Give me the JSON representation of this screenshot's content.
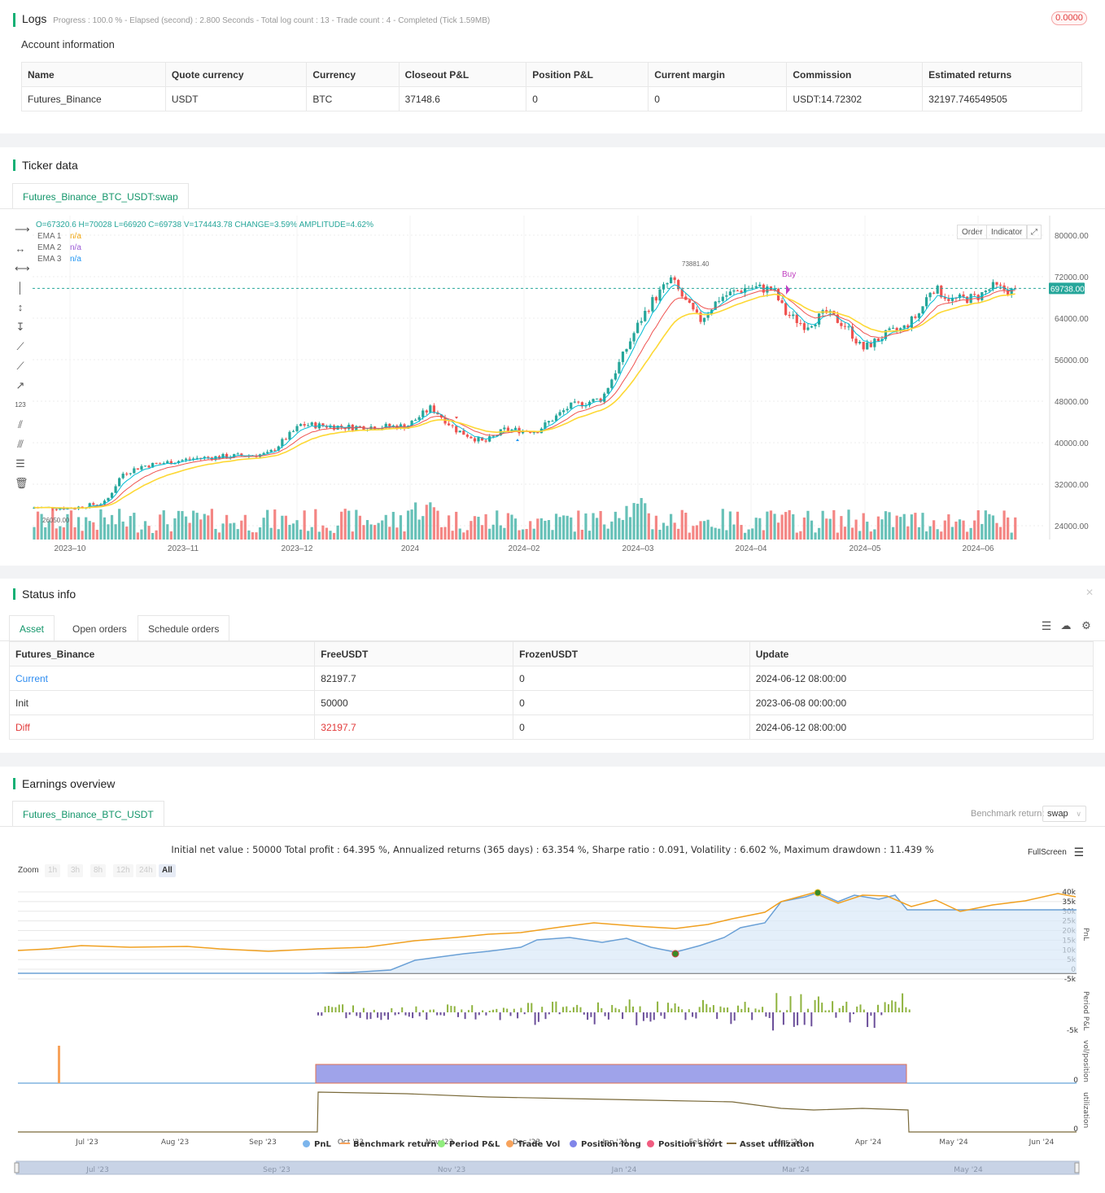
{
  "logs": {
    "title": "Logs",
    "progress_text": "Progress : 100.0 % - Elapsed (second) : 2.800  Seconds - Total log count : 13 - Trade count : 4 - Completed (Tick 1.59MB)",
    "badge": "0.0000"
  },
  "account": {
    "title": "Account information",
    "columns": [
      "Name",
      "Quote currency",
      "Currency",
      "Closeout P&L",
      "Position P&L",
      "Current margin",
      "Commission",
      "Estimated returns"
    ],
    "row": [
      "Futures_Binance",
      "USDT",
      "BTC",
      "37148.6",
      "0",
      "0",
      "USDT:14.72302",
      "32197.746549505"
    ]
  },
  "ticker": {
    "title": "Ticker data",
    "tab": "Futures_Binance_BTC_USDT:swap",
    "ohlc_line": "O=67320.6 H=70028 L=66920 C=69738 V=174443.78 CHANGE=3.59% AMPLITUDE=4.62%",
    "ema": [
      {
        "label": "EMA 1",
        "value": "n/a",
        "color": "#f0a30a"
      },
      {
        "label": "EMA 2",
        "value": "n/a",
        "color": "#9c5bd6"
      },
      {
        "label": "EMA 3",
        "value": "n/a",
        "color": "#2196f3"
      }
    ],
    "order_btn": "Order",
    "indicator_btn": "Indicator",
    "price_labels": [
      "80000.00",
      "72000.00",
      "64000.00",
      "56000.00",
      "48000.00",
      "40000.00",
      "32000.00",
      "24000.00"
    ],
    "current_price": "69738.00",
    "date_labels": [
      "2023–10",
      "2023–11",
      "2023–12",
      "2024",
      "2024–02",
      "2024–03",
      "2024–04",
      "2024–05",
      "2024–06"
    ],
    "high_label": "73881.40",
    "low_label": "26050.00",
    "buy_label": "Buy",
    "colors": {
      "up": "#26a69a",
      "down": "#ef5350",
      "ema_fast": "#00bcd4",
      "ema_mid": "#ef5350",
      "ema_slow": "#fdd835"
    }
  },
  "status": {
    "title": "Status info",
    "tabs": [
      "Asset",
      "Open orders",
      "Schedule orders"
    ],
    "columns": [
      "Futures_Binance",
      "FreeUSDT",
      "FrozenUSDT",
      "Update"
    ],
    "rows": [
      [
        "Current",
        "82197.7",
        "0",
        "2024-06-12 08:00:00"
      ],
      [
        "Init",
        "50000",
        "0",
        "2023-06-08 00:00:00"
      ],
      [
        "Diff",
        "32197.7",
        "0",
        "2024-06-12 08:00:00"
      ]
    ]
  },
  "earnings": {
    "title": "Earnings overview",
    "tab": "Futures_Binance_BTC_USDT",
    "benchmark_label": "Benchmark return:",
    "benchmark_value": "swap",
    "summary": "Initial net value : 50000 Total profit : 64.395 %, Annualized returns (365 days) : 63.354 %, Sharpe ratio : 0.091, Volatility : 6.602 %, Maximum drawdown : 11.439 %",
    "fullscreen": "FullScreen",
    "zoom_label": "Zoom",
    "zoom_options": [
      "1h",
      "3h",
      "8h",
      "12h",
      "24h",
      "All"
    ],
    "pnl_axis": [
      "40k",
      "35k",
      "30k",
      "25k",
      "20k",
      "15k",
      "10k",
      "5k",
      "0",
      "-5k"
    ],
    "pnl_axis_title": "PnL",
    "period_axis": [
      "-5k"
    ],
    "period_axis_title": "Period P&L",
    "vol_axis": [
      "0"
    ],
    "vol_axis_title": "vol/position",
    "util_axis": [
      "0"
    ],
    "util_axis_title": "utilization",
    "x_labels": [
      "Jul '23",
      "Aug '23",
      "Sep '23",
      "Oct '23",
      "Nov '23",
      "Dec '23",
      "Jan '24",
      "Feb '24",
      "Mar '24",
      "Apr '24",
      "May '24",
      "Jun '24"
    ],
    "navigator_labels": [
      "Jul '23",
      "Sep '23",
      "Nov '23",
      "Jan '24",
      "Mar '24",
      "May '24"
    ],
    "legend": [
      {
        "label": "PnL",
        "color": "#7cb5ec",
        "shape": "dot"
      },
      {
        "label": "Benchmark return",
        "color": "#f7a35c",
        "shape": "line"
      },
      {
        "label": "Period P&L",
        "color": "#90ed7d",
        "shape": "dot"
      },
      {
        "label": "Trade Vol",
        "color": "#f7a35c",
        "shape": "dot"
      },
      {
        "label": "Position long",
        "color": "#8085e9",
        "shape": "dot"
      },
      {
        "label": "Position short",
        "color": "#f15c80",
        "shape": "dot"
      },
      {
        "label": "Asset utilization",
        "color": "#8b6f3a",
        "shape": "line"
      }
    ]
  }
}
